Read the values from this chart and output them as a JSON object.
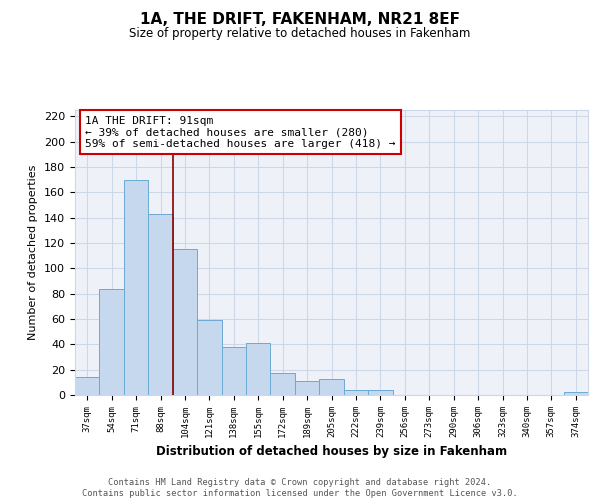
{
  "title": "1A, THE DRIFT, FAKENHAM, NR21 8EF",
  "subtitle": "Size of property relative to detached houses in Fakenham",
  "xlabel": "Distribution of detached houses by size in Fakenham",
  "ylabel": "Number of detached properties",
  "bar_labels": [
    "37sqm",
    "54sqm",
    "71sqm",
    "88sqm",
    "104sqm",
    "121sqm",
    "138sqm",
    "155sqm",
    "172sqm",
    "189sqm",
    "205sqm",
    "222sqm",
    "239sqm",
    "256sqm",
    "273sqm",
    "290sqm",
    "306sqm",
    "323sqm",
    "340sqm",
    "357sqm",
    "374sqm"
  ],
  "bar_values": [
    14,
    84,
    170,
    143,
    115,
    59,
    38,
    41,
    17,
    11,
    13,
    4,
    4,
    0,
    0,
    0,
    0,
    0,
    0,
    0,
    2
  ],
  "bar_color": "#c5d8ee",
  "bar_edge_color": "#6aaad4",
  "reference_line_color": "#8b0000",
  "ylim": [
    0,
    225
  ],
  "yticks": [
    0,
    20,
    40,
    60,
    80,
    100,
    120,
    140,
    160,
    180,
    200,
    220
  ],
  "annotation_line1": "1A THE DRIFT: 91sqm",
  "annotation_line2": "← 39% of detached houses are smaller (280)",
  "annotation_line3": "59% of semi-detached houses are larger (418) →",
  "annotation_box_edgecolor": "#cc0000",
  "footer_text": "Contains HM Land Registry data © Crown copyright and database right 2024.\nContains public sector information licensed under the Open Government Licence v3.0.",
  "background_color": "#ffffff",
  "grid_color": "#ccd8e8"
}
